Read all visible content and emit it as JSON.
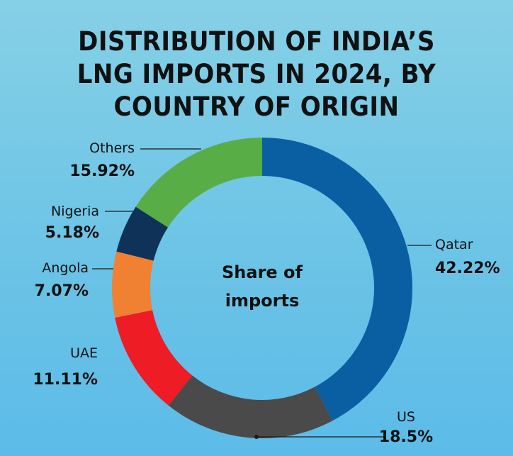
{
  "title_lines": [
    "DISTRIBUTION OF INDIA’S",
    "LNG IMPORTS IN 2024, BY",
    "COUNTRY OF ORIGIN"
  ],
  "center_label_lines": [
    "Share of",
    "imports"
  ],
  "colors": {
    "Qatar": "#0a5fa3",
    "US": "#4a4a4a",
    "UAE": "#ee1c25",
    "Angola": "#f08133",
    "Nigeria": "#0f3358",
    "Others": "#58ad47"
  },
  "chart_data": {
    "type": "pie",
    "variant": "donut",
    "title": "DISTRIBUTION OF INDIA’S LNG IMPORTS IN 2024, BY COUNTRY OF ORIGIN",
    "center_label": "Share of imports",
    "categories": [
      "Qatar",
      "US",
      "UAE",
      "Angola",
      "Nigeria",
      "Others"
    ],
    "values": [
      42.22,
      18.5,
      11.11,
      7.07,
      5.18,
      15.92
    ],
    "value_labels": [
      "42.22%",
      "18.5%",
      "11.11%",
      "7.07%",
      "5.18%",
      "15.92%"
    ],
    "start": "12 o'clock",
    "direction": "clockwise"
  }
}
